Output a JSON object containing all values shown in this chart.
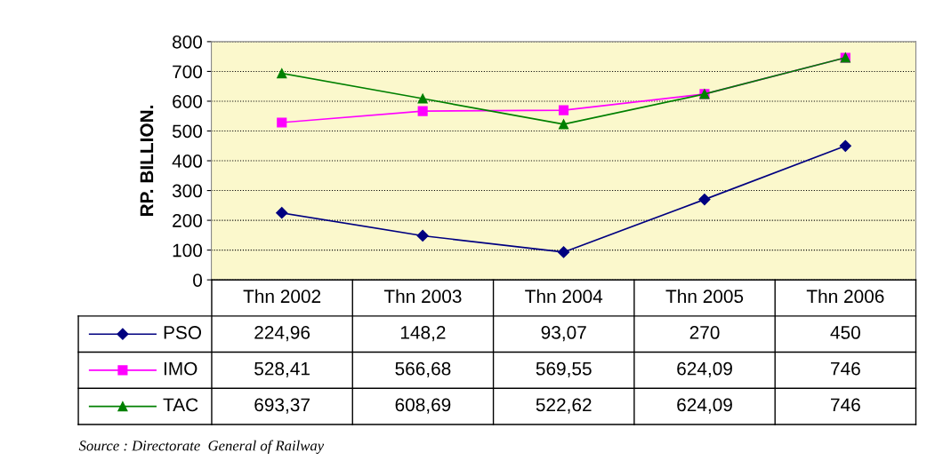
{
  "chart_data": {
    "type": "line",
    "ylabel": "RP. BILLION.",
    "categories": [
      "Thn 2002",
      "Thn 2003",
      "Thn 2004",
      "Thn 2005",
      "Thn 2006"
    ],
    "series": [
      {
        "name": "PSO",
        "color": "#000080",
        "marker": "diamond",
        "values": [
          224.96,
          148.2,
          93.07,
          270,
          450
        ],
        "value_labels": [
          "224,96",
          "148,2",
          "93,07",
          "270",
          "450"
        ]
      },
      {
        "name": "IMO",
        "color": "#ff00ff",
        "marker": "square",
        "values": [
          528.41,
          566.68,
          569.55,
          624.09,
          746
        ],
        "value_labels": [
          "528,41",
          "566,68",
          "569,55",
          "624,09",
          "746"
        ]
      },
      {
        "name": "TAC",
        "color": "#008000",
        "marker": "triangle",
        "values": [
          693.37,
          608.69,
          522.62,
          624.09,
          746
        ],
        "value_labels": [
          "693,37",
          "608,69",
          "522,62",
          "624,09",
          "746"
        ]
      }
    ],
    "ylim": [
      0,
      800
    ],
    "yticks": [
      0,
      100,
      200,
      300,
      400,
      500,
      600,
      700,
      800
    ],
    "grid": "y",
    "legend": "bottom",
    "line_style": "solid",
    "annotations": [
      "Source : Directorate  General of Railway"
    ]
  }
}
